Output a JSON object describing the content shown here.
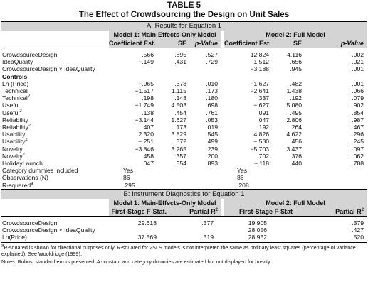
{
  "table": {
    "label": "TABLE 5",
    "title": "The Effect of Crowdsourcing the Design on Unit Sales"
  },
  "panel_a": {
    "title": "A: Results for Equation 1",
    "model1": "Model 1: Main-Effects-Only Model",
    "model2": "Model 2: Full Model",
    "col_coef": "Coefficient Est.",
    "col_se": "SE",
    "col_p": "p-Value",
    "rows_main": [
      {
        "label": "CrowdsourceDesign",
        "m1": [
          ".566",
          ".895",
          ".527"
        ],
        "m2": [
          "12.824",
          "4.116",
          ".002"
        ]
      },
      {
        "label": "IdeaQuality",
        "m1": [
          "−.149",
          ".431",
          ".729"
        ],
        "m2": [
          "1.512",
          ".656",
          ".021"
        ]
      },
      {
        "label": "CrowdsourceDesign × IdeaQuality",
        "m1": [
          "",
          "",
          ""
        ],
        "m2": [
          "−3.188",
          ".945",
          ".001"
        ]
      }
    ],
    "controls_label": "Controls",
    "rows_controls": [
      {
        "label": "Ln (Price)",
        "sup": "",
        "m1": [
          "−.965",
          ".373",
          ".010"
        ],
        "m2": [
          "−1.627",
          ".482",
          ".001"
        ]
      },
      {
        "label": "Technical",
        "sup": "",
        "m1": [
          "−1.517",
          "1.115",
          ".173"
        ],
        "m2": [
          "−2.641",
          "1.438",
          ".066"
        ]
      },
      {
        "label": "Technical",
        "sup": "2",
        "m1": [
          ".198",
          ".148",
          ".180"
        ],
        "m2": [
          ".337",
          ".192",
          ".079"
        ]
      },
      {
        "label": "Useful",
        "sup": "",
        "m1": [
          "−1.749",
          "4.503",
          ".698"
        ],
        "m2": [
          "−.627",
          "5.080",
          ".902"
        ]
      },
      {
        "label": "Useful",
        "sup": "2",
        "m1": [
          ".138",
          ".454",
          ".761"
        ],
        "m2": [
          ".091",
          ".495",
          ".854"
        ]
      },
      {
        "label": "Reliability",
        "sup": "",
        "m1": [
          "−3.144",
          "1.627",
          ".053"
        ],
        "m2": [
          ".047",
          "2.806",
          ".987"
        ]
      },
      {
        "label": "Reliability",
        "sup": "2",
        "m1": [
          ".407",
          ".173",
          ".019"
        ],
        "m2": [
          ".192",
          ".264",
          ".467"
        ]
      },
      {
        "label": "Usability",
        "sup": "",
        "m1": [
          "2.320",
          "3.829",
          ".545"
        ],
        "m2": [
          "4.826",
          "4.622",
          ".296"
        ]
      },
      {
        "label": "Usability",
        "sup": "2",
        "m1": [
          "−.251",
          ".372",
          ".499"
        ],
        "m2": [
          "−.530",
          ".456",
          ".245"
        ]
      },
      {
        "label": "Novelty",
        "sup": "",
        "m1": [
          "−3.846",
          "3.265",
          ".239"
        ],
        "m2": [
          "−5.703",
          "3.437",
          ".097"
        ]
      },
      {
        "label": "Novelty",
        "sup": "2",
        "m1": [
          ".458",
          ".357",
          ".200"
        ],
        "m2": [
          ".702",
          ".376",
          ".062"
        ]
      },
      {
        "label": "HolidayLaunch",
        "sup": "",
        "m1": [
          ".047",
          ".354",
          ".893"
        ],
        "m2": [
          "−.118",
          ".440",
          ".788"
        ]
      }
    ],
    "dummies": {
      "label": "Category dummies included",
      "m1": "Yes",
      "m2": "Yes"
    },
    "obs": {
      "label": "Observations (N)",
      "m1": "86",
      "m2": "86"
    },
    "rsq": {
      "label": "R-squared",
      "sup": "a",
      "m1": ".295",
      "m2": ".208"
    }
  },
  "panel_b": {
    "title": "B: Instrument Diagnostics for Equation 1",
    "model1": "Model 1: Main-Effects-Only Model",
    "model2": "Model 2: Full Model",
    "m1_col1": "First-Stage F-Stat.",
    "m1_col2": "Partial R",
    "m2_col1": "First-Stage F-Stat",
    "m2_col2": "Partial R",
    "sq": "2",
    "rows": [
      {
        "label": "CrowdsourceDesign",
        "m1": [
          "29.618",
          ".377"
        ],
        "m2": [
          "19.905",
          ".379"
        ]
      },
      {
        "label": "CrowdsourceDesign × IdeaQuality",
        "m1": [
          "",
          ""
        ],
        "m2": [
          "28.056",
          ".427"
        ]
      },
      {
        "label": "Ln(Price)",
        "m1": [
          "37.569",
          ".519"
        ],
        "m2": [
          "28.952",
          ".520"
        ]
      }
    ]
  },
  "notes": {
    "note_a_marker": "a",
    "note_a": "R-squared is shown for directional purposes only. R-squared for 2SLS models is not interpreted the same as ordinary least squares (percentage of variance explained). See Wooldridge (1999).",
    "note_b": "Notes: Robust standard errors presented. A constant and category dummies are estimated but not displayed for brevity."
  }
}
